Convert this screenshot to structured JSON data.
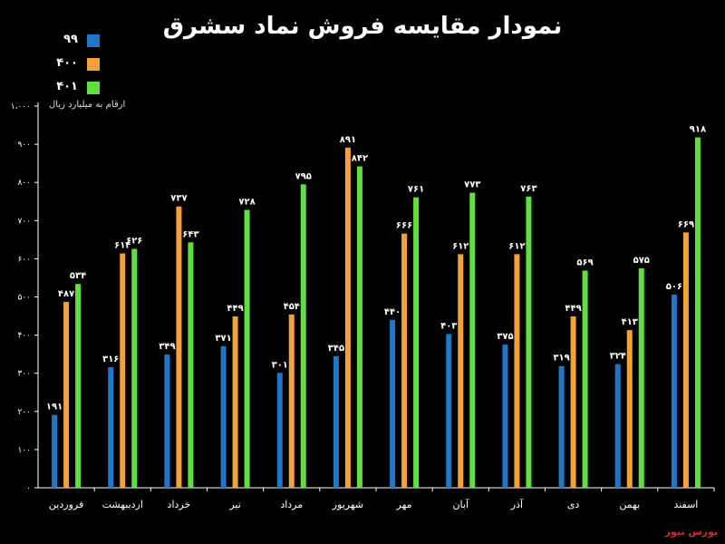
{
  "chart_data": {
    "type": "bar",
    "title": "نمودار مقایسه فروش نماد سشرق",
    "unit_note": "ارقام به میلیارد ریال",
    "source": "بورس نیوز",
    "categories": [
      "فروردین",
      "اردیبهشت",
      "خرداد",
      "تیر",
      "مرداد",
      "شهریور",
      "مهر",
      "آبان",
      "آذر",
      "دی",
      "بهمن",
      "اسفند"
    ],
    "series": [
      {
        "name": "۹۹",
        "color": "#1f77c8",
        "values": [
          191,
          316,
          349,
          371,
          301,
          345,
          440,
          403,
          375,
          319,
          324,
          506
        ],
        "labels": [
          "۱۹۱",
          "۳۱۶",
          "۳۴۹",
          "۳۷۱",
          "۳۰۱",
          "۳۴۵",
          "۴۴۰",
          "۴۰۳",
          "۳۷۵",
          "۳۱۹",
          "۳۲۴",
          "۵۰۶"
        ]
      },
      {
        "name": "۴۰۰",
        "color": "#f5a13a",
        "values": [
          487,
          614,
          737,
          449,
          454,
          891,
          666,
          612,
          612,
          449,
          413,
          669
        ],
        "labels": [
          "۴۸۷",
          "۶۱۴",
          "۷۳۷",
          "۴۴۹",
          "۴۵۴",
          "۸۹۱",
          "۶۶۶",
          "۶۱۲",
          "۶۱۲",
          "۴۴۹",
          "۴۱۳",
          "۶۶۹"
        ]
      },
      {
        "name": "۴۰۱",
        "color": "#5fe040",
        "values": [
          534,
          626,
          643,
          728,
          795,
          842,
          761,
          773,
          763,
          569,
          575,
          918
        ],
        "labels": [
          "۵۳۴",
          "۶۲۶",
          "۶۴۳",
          "۷۲۸",
          "۷۹۵",
          "۸۴۲",
          "۷۶۱",
          "۷۷۳",
          "۷۶۳",
          "۵۶۹",
          "۵۷۵",
          "۹۱۸"
        ]
      }
    ],
    "ylim": [
      0,
      1000
    ],
    "yticks": [
      0,
      100,
      200,
      300,
      400,
      500,
      600,
      700,
      800,
      900,
      1000
    ],
    "ytick_labels": [
      "۰",
      "۱۰۰",
      "۲۰۰",
      "۳۰۰",
      "۴۰۰",
      "۵۰۰",
      "۶۰۰",
      "۷۰۰",
      "۸۰۰",
      "۹۰۰",
      "۱،۰۰۰"
    ],
    "legend_position": "top-left",
    "grid": false,
    "background": "#000000",
    "text_color": "#ffffff"
  }
}
